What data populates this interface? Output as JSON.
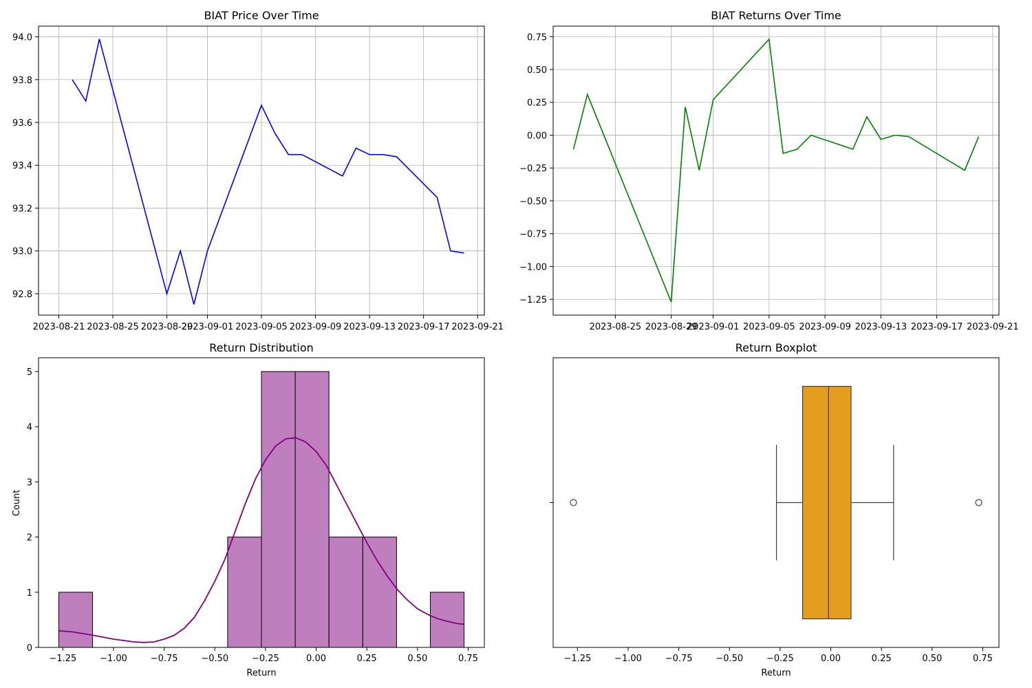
{
  "chart_data": [
    {
      "id": "price",
      "type": "line",
      "title": "BIAT Price Over Time",
      "xlabel": "",
      "ylabel": "",
      "grid": true,
      "color": "#0000ff",
      "x": [
        "2023-08-22",
        "2023-08-23",
        "2023-08-24",
        "2023-08-29",
        "2023-08-30",
        "2023-08-31",
        "2023-09-01",
        "2023-09-05",
        "2023-09-06",
        "2023-09-07",
        "2023-09-08",
        "2023-09-11",
        "2023-09-12",
        "2023-09-13",
        "2023-09-14",
        "2023-09-15",
        "2023-09-18",
        "2023-09-19",
        "2023-09-20"
      ],
      "y": [
        93.8,
        93.7,
        93.99,
        92.8,
        93.0,
        92.75,
        93.0,
        93.68,
        93.55,
        93.45,
        93.45,
        93.35,
        93.48,
        93.45,
        93.45,
        93.44,
        93.25,
        93.0,
        92.99
      ],
      "xlim": [
        "2023-08-21",
        "2023-09-20"
      ],
      "ylim": [
        92.7,
        94.05
      ],
      "xtick_labels": [
        "2023-08-21",
        "2023-08-25",
        "2023-08-29",
        "2023-09-01",
        "2023-09-05",
        "2023-09-09",
        "2023-09-13",
        "2023-09-17",
        "2023-09-21"
      ],
      "yticks": [
        92.8,
        93.0,
        93.2,
        93.4,
        93.6,
        93.8,
        94.0
      ],
      "ytick_labels": [
        "92.8",
        "93.0",
        "93.2",
        "93.4",
        "93.6",
        "93.8",
        "94.0"
      ]
    },
    {
      "id": "returns",
      "type": "line",
      "title": "BIAT Returns Over Time",
      "xlabel": "",
      "ylabel": "",
      "grid": true,
      "color": "#008000",
      "x": [
        "2023-08-22",
        "2023-08-23",
        "2023-08-29",
        "2023-08-30",
        "2023-08-31",
        "2023-09-01",
        "2023-09-05",
        "2023-09-06",
        "2023-09-07",
        "2023-09-08",
        "2023-09-11",
        "2023-09-12",
        "2023-09-13",
        "2023-09-14",
        "2023-09-15",
        "2023-09-19",
        "2023-09-20"
      ],
      "y": [
        -0.107,
        0.31,
        -1.27,
        0.215,
        -0.267,
        0.27,
        0.73,
        -0.139,
        -0.107,
        0.0,
        -0.107,
        0.139,
        -0.032,
        0.0,
        -0.011,
        -0.268,
        -0.011
      ],
      "xlim": [
        "2023-08-22",
        "2023-09-20"
      ],
      "ylim": [
        -1.37,
        0.83
      ],
      "xtick_labels": [
        "2023-08-25",
        "2023-08-29",
        "2023-09-01",
        "2023-09-05",
        "2023-09-09",
        "2023-09-13",
        "2023-09-17",
        "2023-09-21"
      ],
      "yticks": [
        -1.25,
        -1.0,
        -0.75,
        -0.5,
        -0.25,
        0.0,
        0.25,
        0.5,
        0.75
      ],
      "ytick_labels": [
        "−1.25",
        "−1.00",
        "−0.75",
        "−0.50",
        "−0.25",
        "0.00",
        "0.25",
        "0.50",
        "0.75"
      ]
    },
    {
      "id": "hist",
      "type": "bar",
      "title": "Return Distribution",
      "xlabel": "Return",
      "ylabel": "Count",
      "grid": false,
      "bar_color": "#bf7fbf",
      "kde_color": "#800080",
      "bin_edges": [
        -1.27,
        -1.1033,
        -0.9367,
        -0.77,
        -0.6033,
        -0.4367,
        -0.27,
        -0.1033,
        0.0633,
        0.23,
        0.3967,
        0.5633,
        0.73
      ],
      "counts": [
        1,
        0,
        0,
        0,
        0,
        2,
        5,
        5,
        2,
        2,
        0,
        1
      ],
      "kde": [
        [
          -1.27,
          0.3
        ],
        [
          -1.2,
          0.28
        ],
        [
          -1.1,
          0.22
        ],
        [
          -1.0,
          0.15
        ],
        [
          -0.9,
          0.1
        ],
        [
          -0.85,
          0.09
        ],
        [
          -0.8,
          0.1
        ],
        [
          -0.75,
          0.15
        ],
        [
          -0.7,
          0.22
        ],
        [
          -0.65,
          0.35
        ],
        [
          -0.6,
          0.55
        ],
        [
          -0.55,
          0.85
        ],
        [
          -0.5,
          1.2
        ],
        [
          -0.45,
          1.6
        ],
        [
          -0.4,
          2.1
        ],
        [
          -0.35,
          2.6
        ],
        [
          -0.3,
          3.05
        ],
        [
          -0.25,
          3.4
        ],
        [
          -0.2,
          3.65
        ],
        [
          -0.15,
          3.78
        ],
        [
          -0.1,
          3.8
        ],
        [
          -0.05,
          3.72
        ],
        [
          0.0,
          3.55
        ],
        [
          0.05,
          3.3
        ],
        [
          0.1,
          2.95
        ],
        [
          0.15,
          2.6
        ],
        [
          0.2,
          2.25
        ],
        [
          0.25,
          1.9
        ],
        [
          0.3,
          1.58
        ],
        [
          0.35,
          1.3
        ],
        [
          0.4,
          1.05
        ],
        [
          0.45,
          0.86
        ],
        [
          0.5,
          0.7
        ],
        [
          0.55,
          0.6
        ],
        [
          0.6,
          0.52
        ],
        [
          0.65,
          0.47
        ],
        [
          0.7,
          0.43
        ],
        [
          0.73,
          0.42
        ]
      ],
      "xlim": [
        -1.37,
        0.83
      ],
      "ylim": [
        0,
        5.25
      ],
      "xticks": [
        -1.25,
        -1.0,
        -0.75,
        -0.5,
        -0.25,
        0.0,
        0.25,
        0.5,
        0.75
      ],
      "xtick_labels": [
        "−1.25",
        "−1.00",
        "−0.75",
        "−0.50",
        "−0.25",
        "0.00",
        "0.25",
        "0.50",
        "0.75"
      ],
      "yticks": [
        0,
        1,
        2,
        3,
        4,
        5
      ],
      "ytick_labels": [
        "0",
        "1",
        "2",
        "3",
        "4",
        "5"
      ]
    },
    {
      "id": "box",
      "type": "box",
      "title": "Return Boxplot",
      "xlabel": "Return",
      "ylabel": "",
      "grid": false,
      "box_color": "#e49d1f",
      "q1": -0.139,
      "median": -0.011,
      "q3": 0.1,
      "whisker_low": -0.268,
      "whisker_high": 0.31,
      "outliers": [
        -1.27,
        0.73
      ],
      "xlim": [
        -1.37,
        0.83
      ],
      "xticks": [
        -1.25,
        -1.0,
        -0.75,
        -0.5,
        -0.25,
        0.0,
        0.25,
        0.5,
        0.75
      ],
      "xtick_labels": [
        "−1.25",
        "−1.00",
        "−0.75",
        "−0.50",
        "−0.25",
        "0.00",
        "0.25",
        "0.50",
        "0.75"
      ]
    }
  ]
}
